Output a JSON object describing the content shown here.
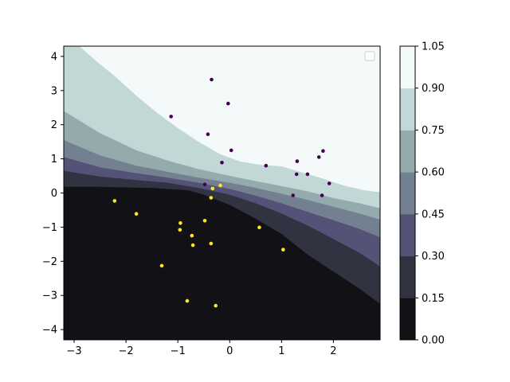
{
  "chart_data": {
    "type": "contourf_scatter",
    "title": "",
    "xlabel": "",
    "ylabel": "",
    "xlim": [
      -3.2,
      2.9
    ],
    "ylim": [
      -4.3,
      4.3
    ],
    "x_ticks": [
      -3,
      -2,
      -1,
      0,
      1,
      2
    ],
    "y_ticks": [
      -4,
      -3,
      -2,
      -1,
      0,
      1,
      2,
      3,
      4
    ],
    "legend": {
      "position": "upper right",
      "entries": []
    },
    "colorbar": {
      "levels": [
        0.0,
        0.15,
        0.3,
        0.45,
        0.6,
        0.75,
        0.9,
        1.05
      ],
      "tick_labels": [
        "0.00",
        "0.15",
        "0.30",
        "0.45",
        "0.60",
        "0.75",
        "0.90",
        "1.05"
      ],
      "colors": [
        "#111116",
        "#323341",
        "#545276",
        "#72808f",
        "#94aaad",
        "#c2d8d6",
        "#f4f9f9"
      ]
    },
    "contour_boundaries": [
      {
        "level": 0.15,
        "points": [
          [
            -3.2,
            0.18
          ],
          [
            -2.5,
            0.18
          ],
          [
            -1.5,
            0.15
          ],
          [
            -0.8,
            0.08
          ],
          [
            -0.5,
            -0.05
          ],
          [
            0.0,
            -0.35
          ],
          [
            0.5,
            -0.75
          ],
          [
            1.0,
            -1.2
          ],
          [
            1.5,
            -1.8
          ],
          [
            2.0,
            -2.3
          ],
          [
            2.5,
            -2.8
          ],
          [
            2.9,
            -3.25
          ]
        ]
      },
      {
        "level": 0.3,
        "points": [
          [
            -3.2,
            0.65
          ],
          [
            -2.5,
            0.48
          ],
          [
            -1.8,
            0.38
          ],
          [
            -1.2,
            0.3
          ],
          [
            -0.6,
            0.15
          ],
          [
            0.0,
            -0.05
          ],
          [
            0.5,
            -0.3
          ],
          [
            1.0,
            -0.6
          ],
          [
            1.5,
            -0.95
          ],
          [
            2.0,
            -1.35
          ],
          [
            2.5,
            -1.75
          ],
          [
            2.9,
            -2.15
          ]
        ]
      },
      {
        "level": 0.45,
        "points": [
          [
            -3.2,
            1.05
          ],
          [
            -2.5,
            0.75
          ],
          [
            -1.8,
            0.58
          ],
          [
            -1.2,
            0.45
          ],
          [
            -0.6,
            0.3
          ],
          [
            0.0,
            0.12
          ],
          [
            0.5,
            -0.08
          ],
          [
            1.0,
            -0.3
          ],
          [
            1.5,
            -0.55
          ],
          [
            2.0,
            -0.8
          ],
          [
            2.5,
            -1.05
          ],
          [
            2.9,
            -1.3
          ]
        ]
      },
      {
        "level": 0.6,
        "points": [
          [
            -3.2,
            1.55
          ],
          [
            -2.5,
            1.1
          ],
          [
            -1.8,
            0.8
          ],
          [
            -1.2,
            0.62
          ],
          [
            -0.6,
            0.45
          ],
          [
            0.0,
            0.3
          ],
          [
            0.5,
            0.15
          ],
          [
            1.0,
            -0.02
          ],
          [
            1.5,
            -0.2
          ],
          [
            2.0,
            -0.4
          ],
          [
            2.5,
            -0.6
          ],
          [
            2.9,
            -0.78
          ]
        ]
      },
      {
        "level": 0.75,
        "points": [
          [
            -3.2,
            2.4
          ],
          [
            -2.5,
            1.75
          ],
          [
            -1.8,
            1.25
          ],
          [
            -1.2,
            0.95
          ],
          [
            -0.6,
            0.7
          ],
          [
            0.0,
            0.5
          ],
          [
            0.5,
            0.35
          ],
          [
            1.0,
            0.2
          ],
          [
            1.5,
            0.05
          ],
          [
            2.0,
            -0.15
          ],
          [
            2.5,
            -0.3
          ],
          [
            2.9,
            -0.45
          ]
        ]
      },
      {
        "level": 0.9,
        "points": [
          [
            -2.9,
            4.3
          ],
          [
            -2.6,
            3.9
          ],
          [
            -2.2,
            3.4
          ],
          [
            -1.8,
            2.85
          ],
          [
            -1.4,
            2.35
          ],
          [
            -1.0,
            1.9
          ],
          [
            -0.6,
            1.5
          ],
          [
            -0.2,
            1.15
          ],
          [
            0.2,
            0.92
          ],
          [
            0.6,
            0.82
          ],
          [
            1.0,
            0.78
          ],
          [
            1.4,
            0.6
          ],
          [
            1.8,
            0.42
          ],
          [
            2.2,
            0.22
          ],
          [
            2.6,
            0.08
          ],
          [
            2.9,
            0.02
          ]
        ]
      }
    ],
    "series": [
      {
        "color": "#440154",
        "points": [
          [
            -0.35,
            3.32
          ],
          [
            -0.03,
            2.62
          ],
          [
            -1.13,
            2.24
          ],
          [
            -0.42,
            1.72
          ],
          [
            0.03,
            1.25
          ],
          [
            -0.15,
            0.89
          ],
          [
            0.7,
            0.8
          ],
          [
            1.3,
            0.93
          ],
          [
            1.8,
            1.23
          ],
          [
            1.72,
            1.05
          ],
          [
            1.29,
            0.55
          ],
          [
            1.5,
            0.55
          ],
          [
            1.92,
            0.28
          ],
          [
            -0.48,
            0.25
          ],
          [
            1.22,
            -0.07
          ],
          [
            1.78,
            -0.07
          ]
        ]
      },
      {
        "color": "#fde725",
        "points": [
          [
            -0.18,
            0.22
          ],
          [
            -0.33,
            0.13
          ],
          [
            -0.36,
            -0.14
          ],
          [
            -2.22,
            -0.23
          ],
          [
            -1.8,
            -0.61
          ],
          [
            -0.48,
            -0.81
          ],
          [
            -0.95,
            -0.88
          ],
          [
            0.57,
            -1.01
          ],
          [
            -0.96,
            -1.08
          ],
          [
            -0.73,
            -1.25
          ],
          [
            -0.36,
            -1.48
          ],
          [
            -0.71,
            -1.53
          ],
          [
            1.03,
            -1.66
          ],
          [
            -1.31,
            -2.13
          ],
          [
            -0.82,
            -3.16
          ],
          [
            -0.27,
            -3.3
          ]
        ]
      }
    ]
  }
}
